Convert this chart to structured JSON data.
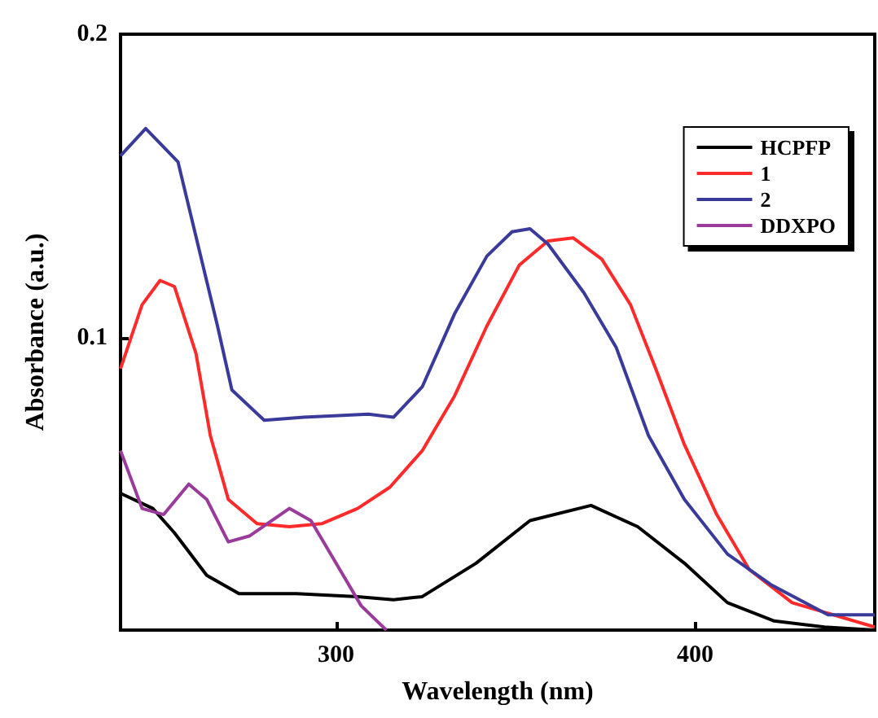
{
  "chart_data": {
    "type": "line",
    "xlabel": "Wavelength (nm)",
    "ylabel": "Absorbance (a.u.)",
    "xlim": [
      240,
      450
    ],
    "xticks": [
      300,
      400
    ],
    "ylim": [
      0.004,
      0.2
    ],
    "yticks": [
      0.1,
      0.2
    ],
    "grid": false,
    "legend": "top right",
    "marker": "none",
    "line_style": "solid",
    "series": [
      {
        "name": "HCPFP",
        "color": "#000000",
        "x": [
          240,
          249,
          255,
          264,
          273,
          289,
          306,
          316,
          324,
          339,
          354,
          371,
          384,
          397,
          409,
          422,
          436,
          450
        ],
        "values": [
          0.049,
          0.044,
          0.036,
          0.022,
          0.016,
          0.016,
          0.015,
          0.014,
          0.015,
          0.026,
          0.04,
          0.045,
          0.038,
          0.026,
          0.013,
          0.007,
          0.005,
          0.004
        ]
      },
      {
        "name": "1",
        "color": "#ff2a2a",
        "x": [
          240,
          246,
          251,
          255,
          261,
          265,
          270,
          278,
          287,
          296,
          306,
          315,
          324,
          333,
          342,
          351,
          359,
          366,
          374,
          382,
          389,
          397,
          406,
          415,
          427,
          450
        ],
        "values": [
          0.09,
          0.111,
          0.119,
          0.117,
          0.095,
          0.068,
          0.047,
          0.039,
          0.038,
          0.039,
          0.044,
          0.051,
          0.063,
          0.081,
          0.104,
          0.124,
          0.132,
          0.133,
          0.126,
          0.111,
          0.09,
          0.065,
          0.042,
          0.024,
          0.013,
          0.005
        ]
      },
      {
        "name": "2",
        "color": "#3a3a9a",
        "x": [
          240,
          247,
          256,
          267,
          271,
          280,
          291,
          309,
          316,
          324,
          333,
          342,
          349,
          354,
          359,
          369,
          378,
          387,
          397,
          409,
          421,
          437,
          450
        ],
        "values": [
          0.16,
          0.169,
          0.158,
          0.104,
          0.083,
          0.073,
          0.074,
          0.075,
          0.074,
          0.084,
          0.108,
          0.127,
          0.135,
          0.136,
          0.131,
          0.115,
          0.097,
          0.068,
          0.047,
          0.029,
          0.019,
          0.009,
          0.009
        ]
      },
      {
        "name": "DDXPO",
        "color": "#9a3a9a",
        "x": [
          240,
          246,
          252,
          259,
          264,
          270,
          276,
          287,
          293,
          300,
          307,
          314
        ],
        "values": [
          0.063,
          0.044,
          0.042,
          0.052,
          0.047,
          0.033,
          0.035,
          0.044,
          0.04,
          0.026,
          0.012,
          0.004
        ]
      }
    ]
  }
}
